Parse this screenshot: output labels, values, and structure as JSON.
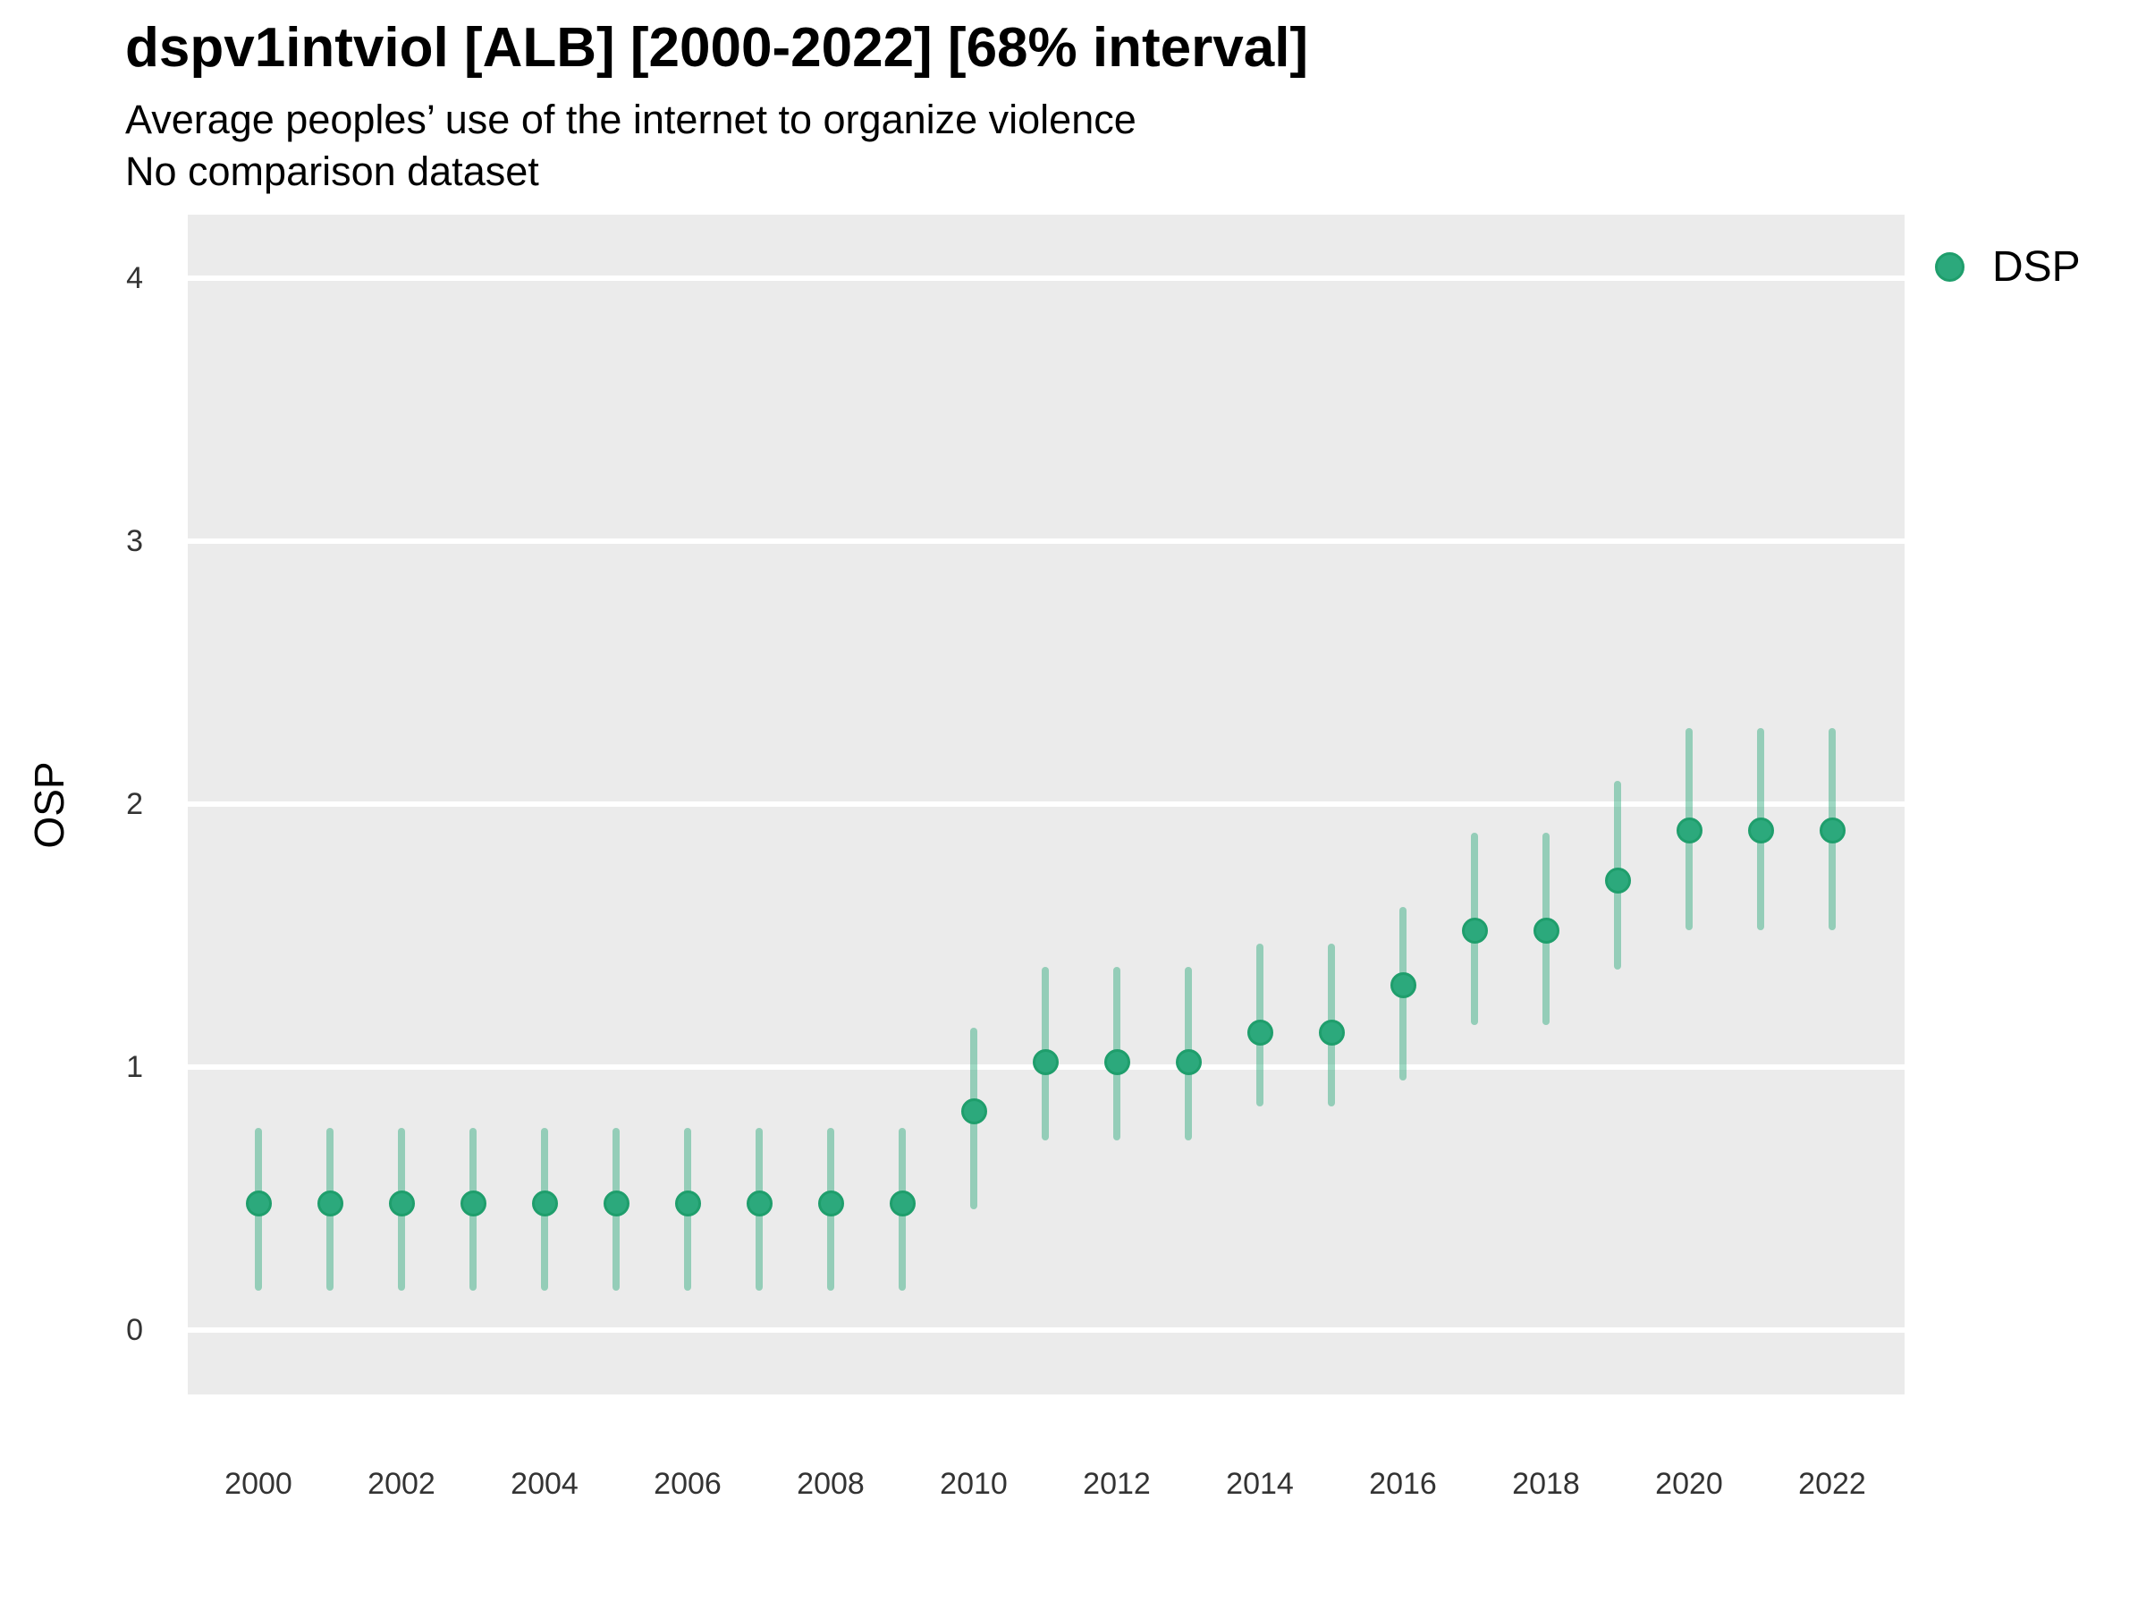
{
  "header": {
    "title": "dspv1intviol [ALB] [2000-2022] [68% interval]",
    "subtitle": "Average peoples’ use of the internet to organize violence",
    "note": "No comparison dataset"
  },
  "legend": {
    "label": "DSP"
  },
  "colors": {
    "point_fill": "#2CA97C",
    "point_stroke": "#1F9E6C",
    "interval_bar": "rgba(42,168,122,0.45)",
    "panel_bg": "#EBEBEB",
    "gridline": "#FFFFFF",
    "title_text": "#000000",
    "tick_text": "#333333"
  },
  "chart_data": {
    "type": "scatter",
    "subtype": "point-estimates-with-interval-bars",
    "title": "dspv1intviol [ALB] [2000-2022] [68% interval]",
    "subtitle": "Average peoples’ use of the internet to organize violence",
    "note": "No comparison dataset",
    "interval_level": "68%",
    "xlabel": "",
    "ylabel": "OSP",
    "ylim": [
      -0.25,
      4.25
    ],
    "xlim": [
      1999,
      2023
    ],
    "y_ticks": [
      0,
      1,
      2,
      3,
      4
    ],
    "x_ticks": [
      2000,
      2002,
      2004,
      2006,
      2008,
      2010,
      2012,
      2014,
      2016,
      2018,
      2020,
      2022
    ],
    "grid": "major-horizontal-only",
    "legend_position": "right",
    "x": [
      2000,
      2001,
      2002,
      2003,
      2004,
      2005,
      2006,
      2007,
      2008,
      2009,
      2010,
      2011,
      2012,
      2013,
      2014,
      2015,
      2016,
      2017,
      2018,
      2019,
      2020,
      2021,
      2022
    ],
    "series": [
      {
        "name": "DSP",
        "values": [
          0.48,
          0.48,
          0.48,
          0.48,
          0.48,
          0.48,
          0.48,
          0.48,
          0.48,
          0.48,
          0.83,
          1.02,
          1.02,
          1.02,
          1.13,
          1.13,
          1.31,
          1.52,
          1.52,
          1.71,
          1.9,
          1.9,
          1.9
        ],
        "lower": [
          0.15,
          0.15,
          0.15,
          0.15,
          0.15,
          0.15,
          0.15,
          0.15,
          0.15,
          0.15,
          0.46,
          0.72,
          0.72,
          0.72,
          0.85,
          0.85,
          0.95,
          1.16,
          1.16,
          1.37,
          1.52,
          1.52,
          1.52
        ],
        "upper": [
          0.77,
          0.77,
          0.77,
          0.77,
          0.77,
          0.77,
          0.77,
          0.77,
          0.77,
          0.77,
          1.15,
          1.38,
          1.38,
          1.38,
          1.47,
          1.47,
          1.61,
          1.89,
          1.89,
          2.09,
          2.29,
          2.29,
          2.29
        ]
      }
    ]
  }
}
